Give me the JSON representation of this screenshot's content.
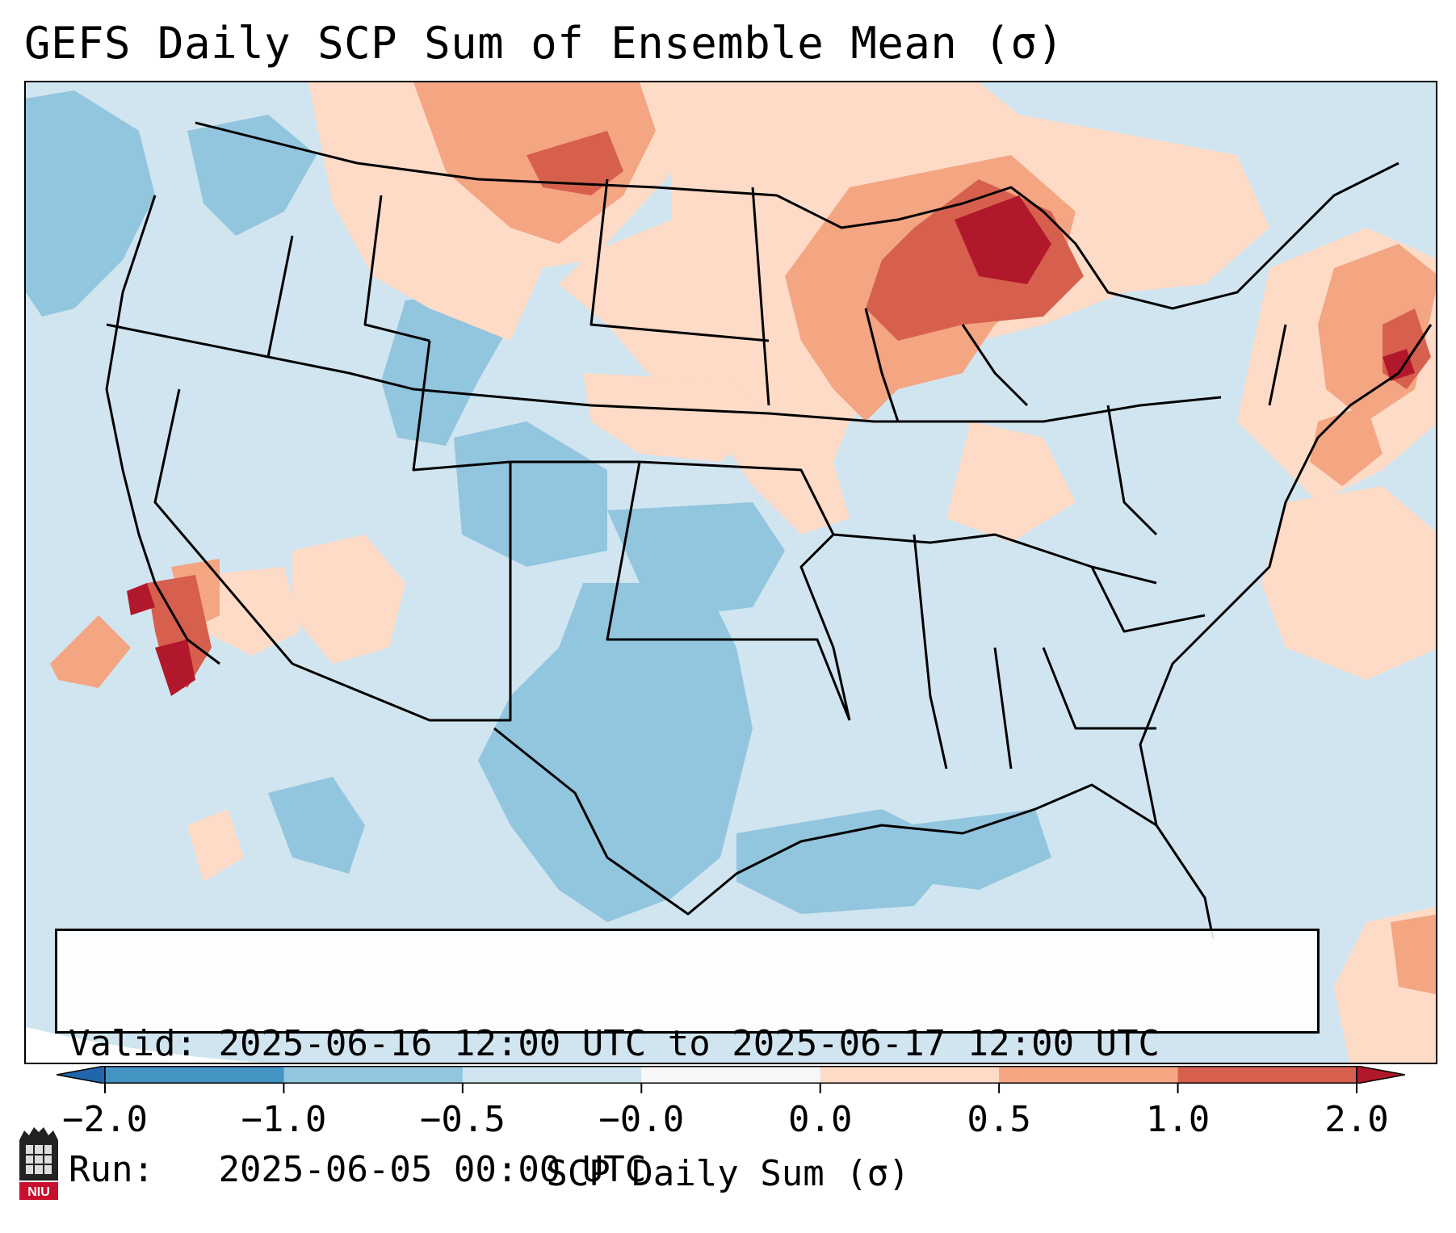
{
  "figure": {
    "title": "GEFS Daily SCP Sum of Ensemble Mean (σ)"
  },
  "info_box": {
    "valid_label": "Valid:",
    "valid_value": "2025-06-16 12:00 UTC to 2025-06-17 12:00 UTC",
    "run_label": "Run:",
    "run_value": "2025-06-05 00:00 UTC"
  },
  "colorbar": {
    "label": "SCP Daily Sum (σ)",
    "ticks": [
      "−2.0",
      "−1.0",
      "−0.5",
      "−0.0",
      "0.0",
      "0.5",
      "1.0",
      "2.0"
    ],
    "bin_colors": [
      "#4393c3",
      "#92c5de",
      "#d1e5f0",
      "#f7f7f7",
      "#fddbc7",
      "#f4a582",
      "#d6604d"
    ],
    "under_color": "#2166ac",
    "over_color": "#b2182b"
  },
  "map": {
    "region": "Contiguous United States",
    "ocean_color": "#d1e5f0",
    "blank_color": "#ffffff"
  },
  "logo": {
    "text": "NIU"
  }
}
